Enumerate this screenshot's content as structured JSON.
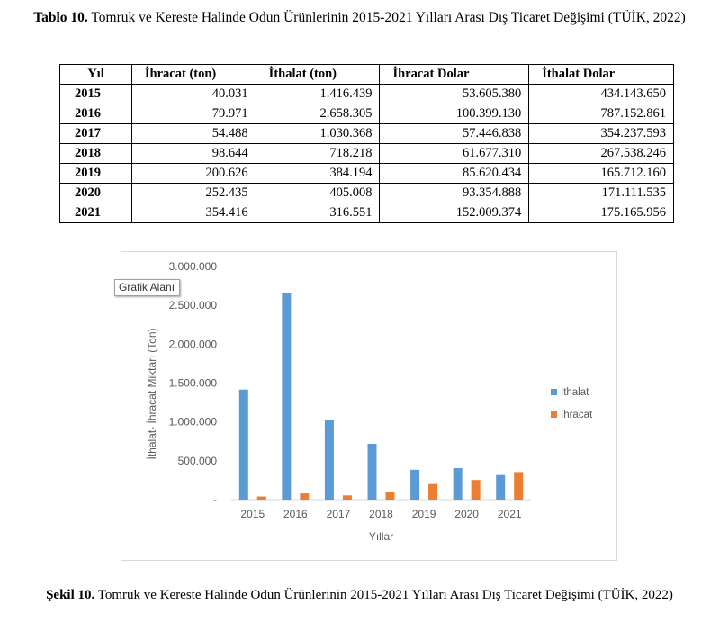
{
  "table_caption": {
    "label": "Tablo 10.",
    "text": "Tomruk ve Kereste Halinde Odun Ürünlerinin 2015-2021 Yılları Arası Dış Ticaret Değişimi (TÜİK, 2022)"
  },
  "table": {
    "headers": [
      "Yıl",
      "İhracat (ton)",
      "İthalat (ton)",
      "İhracat Dolar",
      "İthalat Dolar"
    ],
    "rows": [
      [
        "2015",
        "40.031",
        "1.416.439",
        "53.605.380",
        "434.143.650"
      ],
      [
        "2016",
        "79.971",
        "2.658.305",
        "100.399.130",
        "787.152.861"
      ],
      [
        "2017",
        "54.488",
        "1.030.368",
        "57.446.838",
        "354.237.593"
      ],
      [
        "2018",
        "98.644",
        "718.218",
        "61.677.310",
        "267.538.246"
      ],
      [
        "2019",
        "200.626",
        "384.194",
        "85.620.434",
        "165.712.160"
      ],
      [
        "2020",
        "252.435",
        "405.008",
        "93.354.888",
        "171.111.535"
      ],
      [
        "2021",
        "354.416",
        "316.551",
        "152.009.374",
        "175.165.956"
      ]
    ]
  },
  "tooltip": "Grafik Alanı",
  "chart_data": {
    "type": "bar",
    "categories": [
      "2015",
      "2016",
      "2017",
      "2018",
      "2019",
      "2020",
      "2021"
    ],
    "series": [
      {
        "name": "İthalat",
        "color": "#5b9bd5",
        "values": [
          1416439,
          2658305,
          1030368,
          718218,
          384194,
          405008,
          316551
        ]
      },
      {
        "name": "İhracat",
        "color": "#ed7d31",
        "values": [
          40031,
          79971,
          54488,
          98644,
          200626,
          252435,
          354416
        ]
      }
    ],
    "xlabel": "Yıllar",
    "ylabel": "İthalat- İhracat Miktari (Ton)",
    "ylim": [
      0,
      3000000
    ],
    "y_ticks": [
      {
        "value": 0,
        "label": "-"
      },
      {
        "value": 500000,
        "label": "500.000"
      },
      {
        "value": 1000000,
        "label": "1.000.000"
      },
      {
        "value": 1500000,
        "label": "1.500.000"
      },
      {
        "value": 2000000,
        "label": "2.000.000"
      },
      {
        "value": 2500000,
        "label": "2.500.000"
      },
      {
        "value": 3000000,
        "label": "3.000.000"
      }
    ],
    "grid": false,
    "legend_position": "right"
  },
  "figure_caption": {
    "label": "Şekil 10.",
    "text": "Tomruk ve Kereste Halinde Odun Ürünlerinin 2015-2021 Yılları Arası Dış Ticaret Değişimi (TÜİK, 2022)"
  }
}
